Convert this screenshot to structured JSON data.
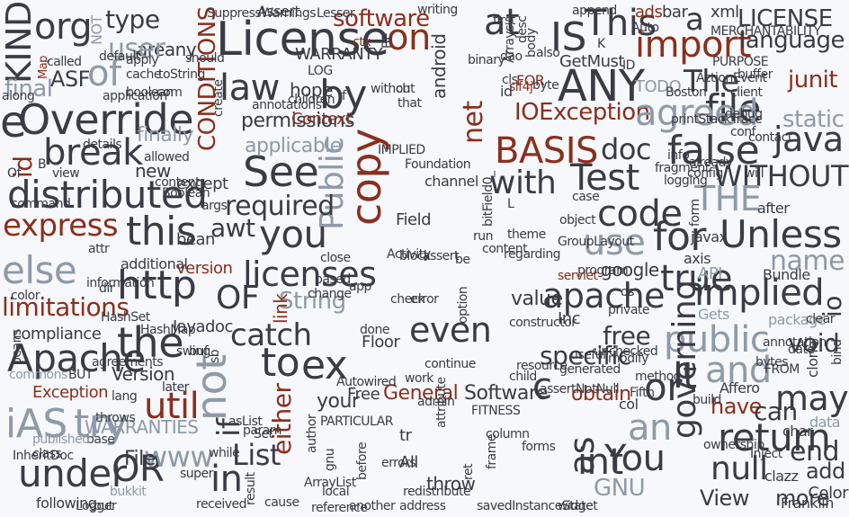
{
  "colors": {
    "dark": "#3b3b45",
    "grey": "#8e9aa8",
    "red": "#8b2f1c",
    "background": "#f6f8fb"
  },
  "words": [
    {
      "t": "KIND"
    },
    {
      "t": "org"
    },
    {
      "t": "type"
    },
    {
      "t": "areany"
    },
    {
      "t": "NOT"
    },
    {
      "t": "Map"
    },
    {
      "t": "user"
    },
    {
      "t": "of"
    },
    {
      "t": "ASF"
    },
    {
      "t": "final"
    },
    {
      "t": "Override"
    },
    {
      "t": "id"
    },
    {
      "t": "e"
    },
    {
      "t": "break"
    },
    {
      "t": "distributed"
    },
    {
      "t": "express"
    },
    {
      "t": "this"
    },
    {
      "t": "else"
    },
    {
      "t": "limitations"
    },
    {
      "t": "http"
    },
    {
      "t": "Apache"
    },
    {
      "t": "the"
    },
    {
      "t": "not"
    },
    {
      "t": "util"
    },
    {
      "t": "iAS"
    },
    {
      "t": "try"
    },
    {
      "t": "WARRANTIES"
    },
    {
      "t": "under"
    },
    {
      "t": "OR"
    },
    {
      "t": "www"
    },
    {
      "t": "in"
    },
    {
      "t": "List"
    },
    {
      "t": "License"
    },
    {
      "t": "law"
    },
    {
      "t": "by"
    },
    {
      "t": "on"
    },
    {
      "t": "software"
    },
    {
      "t": "See"
    },
    {
      "t": "copy"
    },
    {
      "t": "Public"
    },
    {
      "t": "required"
    },
    {
      "t": "you"
    },
    {
      "t": "licenses"
    },
    {
      "t": "OF"
    },
    {
      "t": "String"
    },
    {
      "t": "catch"
    },
    {
      "t": "to"
    },
    {
      "t": "ex"
    },
    {
      "t": "either"
    },
    {
      "t": "General"
    },
    {
      "t": "Software"
    },
    {
      "t": "even"
    },
    {
      "t": "at"
    },
    {
      "t": "IS"
    },
    {
      "t": "ANY"
    },
    {
      "t": "This"
    },
    {
      "t": "import"
    },
    {
      "t": "IOException"
    },
    {
      "t": "BASIS"
    },
    {
      "t": "Test"
    },
    {
      "t": "with"
    },
    {
      "t": "a"
    },
    {
      "t": "LICENSE"
    },
    {
      "t": "language"
    },
    {
      "t": "The"
    },
    {
      "t": "file"
    },
    {
      "t": "agreed"
    },
    {
      "t": "junit"
    },
    {
      "t": "java"
    },
    {
      "t": "false"
    },
    {
      "t": "doc"
    },
    {
      "t": "code"
    },
    {
      "t": "WITHOUT"
    },
    {
      "t": "THE"
    },
    {
      "t": "Unless"
    },
    {
      "t": "for"
    },
    {
      "t": "use"
    },
    {
      "t": "true"
    },
    {
      "t": "apache"
    },
    {
      "t": "implied"
    },
    {
      "t": "name"
    },
    {
      "t": "io"
    },
    {
      "t": "public"
    },
    {
      "t": "and"
    },
    {
      "t": "void"
    },
    {
      "t": "It"
    },
    {
      "t": "may"
    },
    {
      "t": "or"
    },
    {
      "t": "an"
    },
    {
      "t": "return"
    },
    {
      "t": "int"
    },
    {
      "t": "You"
    },
    {
      "t": "null"
    },
    {
      "t": "more"
    },
    {
      "t": "end"
    },
    {
      "t": "add"
    },
    {
      "t": "GNU"
    },
    {
      "t": "governing"
    },
    {
      "t": "View"
    },
    {
      "t": "as"
    },
    {
      "t": "value"
    },
    {
      "t": "free"
    },
    {
      "t": "obtain"
    },
    {
      "t": "have"
    },
    {
      "t": "can"
    },
    {
      "t": "specific"
    },
    {
      "t": "c"
    },
    {
      "t": "compliance"
    },
    {
      "t": "Exception"
    },
    {
      "t": "Version"
    },
    {
      "t": "version"
    },
    {
      "t": "permissions"
    },
    {
      "t": "applicable"
    },
    {
      "t": "finally"
    },
    {
      "t": "hope"
    },
    {
      "t": "if"
    },
    {
      "t": "Javadoc"
    },
    {
      "t": "link"
    },
    {
      "t": "your"
    },
    {
      "t": "Free"
    },
    {
      "t": "new"
    },
    {
      "t": "additional"
    },
    {
      "t": "bean"
    },
    {
      "t": "awt"
    },
    {
      "t": "static"
    },
    {
      "t": "net"
    },
    {
      "t": "FITNESS"
    },
    {
      "t": "Floor"
    },
    {
      "t": "Inc"
    },
    {
      "t": "google"
    },
    {
      "t": "ads"
    },
    {
      "t": "bar"
    },
    {
      "t": "xml"
    },
    {
      "t": "Assert"
    },
    {
      "t": "CONDITIONS"
    },
    {
      "t": "WARRANTY"
    },
    {
      "t": "FOR"
    },
    {
      "t": "Context"
    },
    {
      "t": "TODO"
    },
    {
      "t": "GetMust"
    },
    {
      "t": "android"
    },
    {
      "t": "Field"
    },
    {
      "t": "block"
    },
    {
      "t": "assert"
    },
    {
      "t": "ArrayList"
    },
    {
      "t": "bukkit"
    },
    {
      "t": "File"
    },
    {
      "t": "while"
    },
    {
      "t": "cause"
    },
    {
      "t": "another"
    },
    {
      "t": "address"
    },
    {
      "t": "savedInstanceState"
    },
    {
      "t": "widget"
    },
    {
      "t": "following"
    },
    {
      "t": "Logger"
    },
    {
      "t": "but"
    },
    {
      "t": "received"
    },
    {
      "t": "result"
    },
    {
      "t": "reference"
    },
    {
      "t": "local"
    },
    {
      "t": "redistribute"
    },
    {
      "t": "Boston"
    },
    {
      "t": "Affero"
    },
    {
      "t": "clazz"
    },
    {
      "t": "Inject"
    },
    {
      "t": "ownership"
    },
    {
      "t": "char"
    },
    {
      "t": "data"
    },
    {
      "t": "Gets"
    },
    {
      "t": "package"
    },
    {
      "t": "clear"
    },
    {
      "t": "annotation"
    },
    {
      "t": "bytes"
    },
    {
      "t": "date"
    },
    {
      "t": "FROM"
    },
    {
      "t": "clone"
    },
    {
      "t": "bind"
    },
    {
      "t": "API"
    },
    {
      "t": "Bundle"
    },
    {
      "t": "axis"
    },
    {
      "t": "javax"
    },
    {
      "t": "program"
    },
    {
      "t": "useful"
    },
    {
      "t": "modify"
    },
    {
      "t": "generated"
    },
    {
      "t": "unchecked"
    },
    {
      "t": "col"
    },
    {
      "t": "Fifth"
    },
    {
      "t": "method"
    },
    {
      "t": "build"
    },
    {
      "t": "child"
    },
    {
      "t": "resource"
    },
    {
      "t": "assertNotNull"
    },
    {
      "t": "work"
    },
    {
      "t": "continue"
    },
    {
      "t": "Autowired"
    },
    {
      "t": "admin"
    },
    {
      "t": "attribute"
    },
    {
      "t": "option"
    },
    {
      "t": "content"
    },
    {
      "t": "theme"
    },
    {
      "t": "app"
    },
    {
      "t": "check"
    },
    {
      "t": "error"
    },
    {
      "t": "change"
    },
    {
      "t": "HashSet"
    },
    {
      "t": "HashMap"
    },
    {
      "t": "swing"
    },
    {
      "t": "buf"
    },
    {
      "t": "sb"
    },
    {
      "t": "lang"
    },
    {
      "t": "later"
    },
    {
      "t": "throws"
    },
    {
      "t": "base"
    },
    {
      "t": "class"
    },
    {
      "t": "published"
    },
    {
      "t": "InheritDoc"
    },
    {
      "t": "super"
    },
    {
      "t": "asList"
    },
    {
      "t": "param"
    },
    {
      "t": "Set"
    },
    {
      "t": "BUT"
    },
    {
      "t": "agreements"
    },
    {
      "t": "beans"
    },
    {
      "t": "commons"
    },
    {
      "t": "color"
    },
    {
      "t": "attr"
    },
    {
      "t": "information"
    },
    {
      "t": "dir"
    },
    {
      "t": "args"
    },
    {
      "t": "except"
    },
    {
      "t": "B"
    },
    {
      "t": "details"
    },
    {
      "t": "Of"
    },
    {
      "t": "view"
    },
    {
      "t": "command"
    },
    {
      "t": "content"
    },
    {
      "t": "Boolean"
    },
    {
      "t": "allowed"
    },
    {
      "t": "default"
    },
    {
      "t": "apply"
    },
    {
      "t": "cache"
    },
    {
      "t": "toString"
    },
    {
      "t": "com"
    },
    {
      "t": "boolean"
    },
    {
      "t": "application"
    },
    {
      "t": "called"
    },
    {
      "t": "along"
    },
    {
      "t": "create"
    },
    {
      "t": "should"
    },
    {
      "t": "SuppressWarnings"
    },
    {
      "t": "Lesser"
    },
    {
      "t": "ctx"
    },
    {
      "t": "BE"
    },
    {
      "t": "LOG"
    },
    {
      "t": "PURPOSE"
    },
    {
      "t": "MERCHANTABILITY"
    },
    {
      "t": "Auto"
    },
    {
      "t": "append"
    },
    {
      "t": "binary"
    },
    {
      "t": "Arrays"
    },
    {
      "t": "body"
    },
    {
      "t": "desc"
    },
    {
      "t": "dao"
    },
    {
      "t": "cls"
    },
    {
      "t": "byte"
    },
    {
      "t": "slf4j"
    },
    {
      "t": "K"
    },
    {
      "t": "also"
    },
    {
      "t": "ch"
    },
    {
      "t": "without"
    },
    {
      "t": "that"
    },
    {
      "t": "f"
    },
    {
      "t": "children"
    },
    {
      "t": "annotations"
    },
    {
      "t": "IMPLIED"
    },
    {
      "t": "Foundation"
    },
    {
      "t": "channel"
    },
    {
      "t": "L"
    },
    {
      "t": "bitField0_"
    },
    {
      "t": "object"
    },
    {
      "t": "GroupLayout"
    },
    {
      "t": "case"
    },
    {
      "t": "logging"
    },
    {
      "t": "info"
    },
    {
      "t": "config"
    },
    {
      "t": "fragment"
    },
    {
      "t": "already"
    },
    {
      "t": "conf"
    },
    {
      "t": "debug"
    },
    {
      "t": "ActionEvent"
    },
    {
      "t": "buffer"
    },
    {
      "t": "client"
    },
    {
      "t": "printStackTrace"
    },
    {
      "t": "contact"
    },
    {
      "t": "will"
    },
    {
      "t": "after"
    },
    {
      "t": "form"
    },
    {
      "t": "os"
    },
    {
      "t": "servlet"
    },
    {
      "t": "private"
    },
    {
      "t": "based"
    },
    {
      "t": "close"
    },
    {
      "t": "PARTICULAR"
    },
    {
      "t": "author"
    },
    {
      "t": "gnu"
    },
    {
      "t": "tr"
    },
    {
      "t": "All"
    },
    {
      "t": "throw"
    },
    {
      "t": "be"
    },
    {
      "t": "run"
    },
    {
      "t": "regarding"
    },
    {
      "t": "Activity"
    },
    {
      "t": "done"
    },
    {
      "t": "constructor"
    },
    {
      "t": "column"
    },
    {
      "t": "before"
    },
    {
      "t": "errors"
    },
    {
      "t": "forms"
    },
    {
      "t": "ret"
    },
    {
      "t": "frame"
    },
    {
      "t": "first"
    },
    {
      "t": "id"
    },
    {
      "t": "ID"
    },
    {
      "t": "writing"
    },
    {
      "t": "Franklin"
    },
    {
      "t": "Color"
    },
    {
      "t": "callback"
    },
    {
      "t": "d"
    },
    {
      "t": "x"
    }
  ]
}
